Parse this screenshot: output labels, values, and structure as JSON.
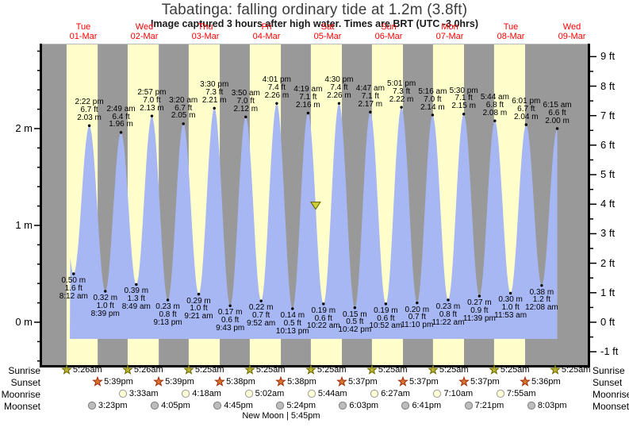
{
  "title": "Tabatinga: falling  ordinary tide at 1.2m (3.8ft)",
  "subtitle": "Image captured 3 hours after high water. Times are BRT (UTC -3.0hrs)",
  "days": [
    {
      "name": "Tue",
      "date": "01-Mar"
    },
    {
      "name": "Wed",
      "date": "02-Mar"
    },
    {
      "name": "Thu",
      "date": "03-Mar"
    },
    {
      "name": "Fri",
      "date": "04-Mar"
    },
    {
      "name": "Sat",
      "date": "05-Mar"
    },
    {
      "name": "Sun",
      "date": "06-Mar"
    },
    {
      "name": "Mon",
      "date": "07-Mar"
    },
    {
      "name": "Tue",
      "date": "08-Mar"
    },
    {
      "name": "Wed",
      "date": "09-Mar"
    }
  ],
  "chart_data": {
    "type": "area",
    "title": "Tabatinga: falling  ordinary tide at 1.2m (3.8ft)",
    "y_axis_left": {
      "unit": "m",
      "ticks": [
        {
          "label": "2 m",
          "value": 2
        },
        {
          "label": "1 m",
          "value": 1
        },
        {
          "label": "0 m",
          "value": 0
        }
      ],
      "minor_step_m": 0.2,
      "range_m": [
        -0.43,
        2.87
      ]
    },
    "y_axis_right": {
      "unit": "ft",
      "ticks": [
        {
          "label": "9 ft",
          "value": 9
        },
        {
          "label": "8 ft",
          "value": 8
        },
        {
          "label": "7 ft",
          "value": 7
        },
        {
          "label": "6 ft",
          "value": 6
        },
        {
          "label": "5 ft",
          "value": 5
        },
        {
          "label": "4 ft",
          "value": 4
        },
        {
          "label": "3 ft",
          "value": 3
        },
        {
          "label": "2 ft",
          "value": 2
        },
        {
          "label": "1 ft",
          "value": 1
        },
        {
          "label": "0 ft",
          "value": 0
        },
        {
          "label": "-1 ft",
          "value": -1
        }
      ],
      "minor_step_ft": 0.5
    },
    "tide_events": [
      {
        "kind": "low",
        "day": 0,
        "time": "8:12 am",
        "time_h": 8.2,
        "height_m": 0.5,
        "m_label": "0.50 m",
        "ft_label": "1.6 ft"
      },
      {
        "kind": "high",
        "day": 0,
        "time": "2:22 pm",
        "time_h": 14.367,
        "height_m": 2.03,
        "m_label": "2.03 m",
        "ft_label": "6.7 ft"
      },
      {
        "kind": "low",
        "day": 0,
        "time": "8:39 pm",
        "time_h": 20.65,
        "height_m": 0.32,
        "m_label": "0.32 m",
        "ft_label": "1.0 ft"
      },
      {
        "kind": "high",
        "day": 1,
        "time": "2:49 am",
        "time_h": 2.817,
        "height_m": 1.96,
        "m_label": "1.96 m",
        "ft_label": "6.4 ft"
      },
      {
        "kind": "low",
        "day": 1,
        "time": "8:49 am",
        "time_h": 8.817,
        "height_m": 0.39,
        "m_label": "0.39 m",
        "ft_label": "1.3 ft"
      },
      {
        "kind": "high",
        "day": 1,
        "time": "2:57 pm",
        "time_h": 14.95,
        "height_m": 2.13,
        "m_label": "2.13 m",
        "ft_label": "7.0 ft"
      },
      {
        "kind": "low",
        "day": 1,
        "time": "9:13 pm",
        "time_h": 21.217,
        "height_m": 0.23,
        "m_label": "0.23 m",
        "ft_label": "0.8 ft"
      },
      {
        "kind": "high",
        "day": 2,
        "time": "3:20 am",
        "time_h": 3.333,
        "height_m": 2.05,
        "m_label": "2.05 m",
        "ft_label": "6.7 ft"
      },
      {
        "kind": "low",
        "day": 2,
        "time": "9:21 am",
        "time_h": 9.35,
        "height_m": 0.29,
        "m_label": "0.29 m",
        "ft_label": "1.0 ft"
      },
      {
        "kind": "high",
        "day": 2,
        "time": "3:30 pm",
        "time_h": 15.5,
        "height_m": 2.21,
        "m_label": "2.21 m",
        "ft_label": "7.3 ft"
      },
      {
        "kind": "low",
        "day": 2,
        "time": "9:43 pm",
        "time_h": 21.717,
        "height_m": 0.17,
        "m_label": "0.17 m",
        "ft_label": "0.6 ft"
      },
      {
        "kind": "high",
        "day": 3,
        "time": "3:50 am",
        "time_h": 3.833,
        "height_m": 2.12,
        "m_label": "2.12 m",
        "ft_label": "7.0 ft"
      },
      {
        "kind": "low",
        "day": 3,
        "time": "9:52 am",
        "time_h": 9.867,
        "height_m": 0.22,
        "m_label": "0.22 m",
        "ft_label": "0.7 ft"
      },
      {
        "kind": "high",
        "day": 3,
        "time": "4:01 pm",
        "time_h": 16.017,
        "height_m": 2.26,
        "m_label": "2.26 m",
        "ft_label": "7.4 ft"
      },
      {
        "kind": "low",
        "day": 3,
        "time": "10:13 pm",
        "time_h": 22.217,
        "height_m": 0.14,
        "m_label": "0.14 m",
        "ft_label": "0.5 ft"
      },
      {
        "kind": "high",
        "day": 4,
        "time": "4:19 am",
        "time_h": 4.317,
        "height_m": 2.16,
        "m_label": "2.16 m",
        "ft_label": "7.1 ft"
      },
      {
        "kind": "low",
        "day": 4,
        "time": "10:22 am",
        "time_h": 10.367,
        "height_m": 0.19,
        "m_label": "0.19 m",
        "ft_label": "0.6 ft"
      },
      {
        "kind": "high",
        "day": 4,
        "time": "4:30 pm",
        "time_h": 16.5,
        "height_m": 2.26,
        "m_label": "2.26 m",
        "ft_label": "7.4 ft"
      },
      {
        "kind": "low",
        "day": 4,
        "time": "10:42 pm",
        "time_h": 22.7,
        "height_m": 0.15,
        "m_label": "0.15 m",
        "ft_label": "0.5 ft"
      },
      {
        "kind": "high",
        "day": 5,
        "time": "4:47 am",
        "time_h": 4.783,
        "height_m": 2.17,
        "m_label": "2.17 m",
        "ft_label": "7.1 ft"
      },
      {
        "kind": "low",
        "day": 5,
        "time": "10:52 am",
        "time_h": 10.867,
        "height_m": 0.19,
        "m_label": "0.19 m",
        "ft_label": "0.6 ft"
      },
      {
        "kind": "high",
        "day": 5,
        "time": "5:01 pm",
        "time_h": 17.017,
        "height_m": 2.22,
        "m_label": "2.22 m",
        "ft_label": "7.3 ft"
      },
      {
        "kind": "low",
        "day": 5,
        "time": "11:10 pm",
        "time_h": 23.167,
        "height_m": 0.2,
        "m_label": "0.20 m",
        "ft_label": "0.7 ft"
      },
      {
        "kind": "high",
        "day": 6,
        "time": "5:16 am",
        "time_h": 5.267,
        "height_m": 2.14,
        "m_label": "2.14 m",
        "ft_label": "7.0 ft"
      },
      {
        "kind": "low",
        "day": 6,
        "time": "11:22 am",
        "time_h": 11.367,
        "height_m": 0.23,
        "m_label": "0.23 m",
        "ft_label": "0.8 ft"
      },
      {
        "kind": "high",
        "day": 6,
        "time": "5:30 pm",
        "time_h": 17.5,
        "height_m": 2.15,
        "m_label": "2.15 m",
        "ft_label": "7.1 ft"
      },
      {
        "kind": "low",
        "day": 6,
        "time": "11:39 pm",
        "time_h": 23.65,
        "height_m": 0.27,
        "m_label": "0.27 m",
        "ft_label": "0.9 ft"
      },
      {
        "kind": "high",
        "day": 7,
        "time": "5:44 am",
        "time_h": 5.733,
        "height_m": 2.08,
        "m_label": "2.08 m",
        "ft_label": "6.8 ft"
      },
      {
        "kind": "low",
        "day": 7,
        "time": "11:53 am",
        "time_h": 11.883,
        "height_m": 0.3,
        "m_label": "0.30 m",
        "ft_label": "1.0 ft"
      },
      {
        "kind": "high",
        "day": 7,
        "time": "6:01 pm",
        "time_h": 18.017,
        "height_m": 2.04,
        "m_label": "2.04 m",
        "ft_label": "6.7 ft"
      },
      {
        "kind": "low",
        "day": 8,
        "time": "12:08 am",
        "time_h": 0.133,
        "height_m": 0.38,
        "m_label": "0.38 m",
        "ft_label": "1.2 ft"
      },
      {
        "kind": "high",
        "day": 8,
        "time": "6:15 am",
        "time_h": 6.25,
        "height_m": 2.0,
        "m_label": "2.00 m",
        "ft_label": "6.6 ft"
      }
    ],
    "current_marker": {
      "day": 4,
      "time_h": 7.3,
      "height_m": 1.2
    }
  },
  "astro": {
    "rows": [
      {
        "id": "sunrise",
        "label": "Sunrise",
        "icon": "sunrise-star-icon",
        "items": [
          {
            "day": 0,
            "time": "5:26am",
            "time_h": 5.433
          },
          {
            "day": 1,
            "time": "5:26am",
            "time_h": 5.433
          },
          {
            "day": 2,
            "time": "5:25am",
            "time_h": 5.417
          },
          {
            "day": 3,
            "time": "5:25am",
            "time_h": 5.417
          },
          {
            "day": 4,
            "time": "5:25am",
            "time_h": 5.417
          },
          {
            "day": 5,
            "time": "5:25am",
            "time_h": 5.417
          },
          {
            "day": 6,
            "time": "5:25am",
            "time_h": 5.417
          },
          {
            "day": 7,
            "time": "5:25am",
            "time_h": 5.417
          },
          {
            "day": 8,
            "time": "5:25am",
            "time_h": 5.417
          }
        ]
      },
      {
        "id": "sunset",
        "label": "Sunset",
        "icon": "sunset-star-icon",
        "items": [
          {
            "day": 0,
            "time": "5:39pm",
            "time_h": 17.65
          },
          {
            "day": 1,
            "time": "5:39pm",
            "time_h": 17.65
          },
          {
            "day": 2,
            "time": "5:38pm",
            "time_h": 17.633
          },
          {
            "day": 3,
            "time": "5:38pm",
            "time_h": 17.633
          },
          {
            "day": 4,
            "time": "5:37pm",
            "time_h": 17.617
          },
          {
            "day": 5,
            "time": "5:37pm",
            "time_h": 17.617
          },
          {
            "day": 6,
            "time": "5:37pm",
            "time_h": 17.617
          },
          {
            "day": 7,
            "time": "5:36pm",
            "time_h": 17.6
          }
        ]
      },
      {
        "id": "moonrise",
        "label": "Moonrise",
        "icon": "moonrise-circle-icon",
        "items": [
          {
            "day": 1,
            "time": "3:33am",
            "time_h": 3.55
          },
          {
            "day": 2,
            "time": "4:18am",
            "time_h": 4.3
          },
          {
            "day": 3,
            "time": "5:02am",
            "time_h": 5.033
          },
          {
            "day": 4,
            "time": "5:44am",
            "time_h": 5.733
          },
          {
            "day": 5,
            "time": "6:27am",
            "time_h": 6.45
          },
          {
            "day": 6,
            "time": "7:10am",
            "time_h": 7.167
          },
          {
            "day": 7,
            "time": "7:55am",
            "time_h": 7.917
          }
        ]
      },
      {
        "id": "moonset",
        "label": "Moonset",
        "icon": "moonset-circle-icon",
        "items": [
          {
            "day": 0,
            "time": "3:23pm",
            "time_h": 15.383
          },
          {
            "day": 1,
            "time": "4:05pm",
            "time_h": 16.083
          },
          {
            "day": 2,
            "time": "4:45pm",
            "time_h": 16.75
          },
          {
            "day": 3,
            "time": "5:24pm",
            "time_h": 17.4
          },
          {
            "day": 4,
            "time": "6:03pm",
            "time_h": 18.05
          },
          {
            "day": 5,
            "time": "6:41pm",
            "time_h": 18.683
          },
          {
            "day": 6,
            "time": "7:21pm",
            "time_h": 19.35
          },
          {
            "day": 7,
            "time": "8:03pm",
            "time_h": 20.05
          }
        ]
      }
    ],
    "moon_phase": {
      "text": "New Moon | 5:45pm",
      "day": 3,
      "time_h": 17.75
    }
  },
  "colors": {
    "night_band": "#999999",
    "day_band": "#ffffcc",
    "tide_fill": "#a7b7f3",
    "date_red": "#ff0000",
    "frame": "#000000",
    "frame_top": "#bbbbbb",
    "sunrise_star_fill": "#b9b433",
    "sunrise_star_stroke": "#6f6a00",
    "sunset_star_fill": "#d8742c",
    "sunset_star_stroke": "#a03010",
    "moonrise_fill": "#ffffd6",
    "moonrise_stroke": "#999999",
    "moonset_fill": "#bcbcbc",
    "moonset_stroke": "#808080",
    "marker_fill": "#cfcf3a",
    "marker_stroke": "#5f5f00"
  }
}
